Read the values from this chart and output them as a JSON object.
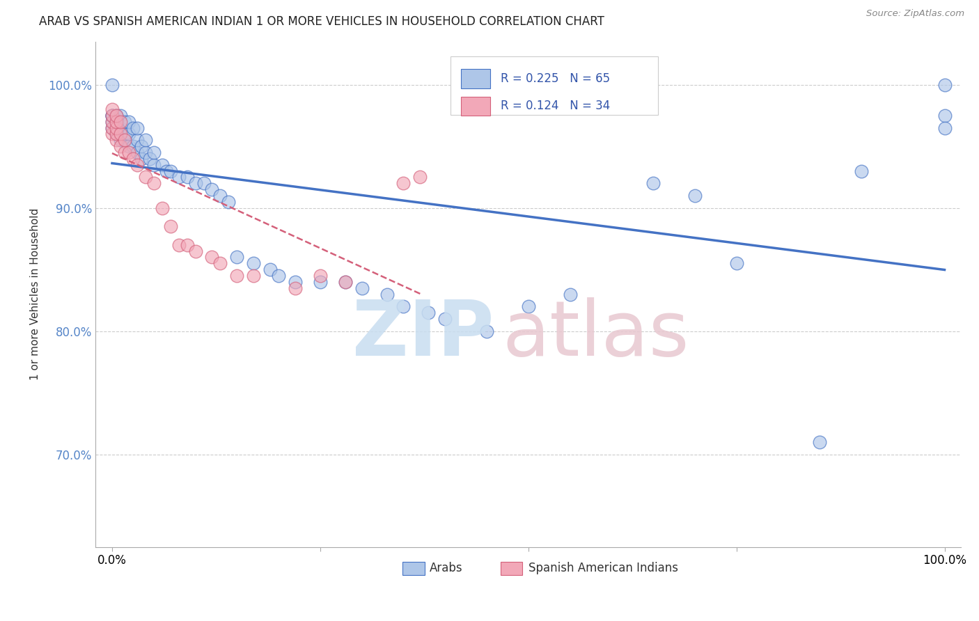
{
  "title": "ARAB VS SPANISH AMERICAN INDIAN 1 OR MORE VEHICLES IN HOUSEHOLD CORRELATION CHART",
  "source": "Source: ZipAtlas.com",
  "ylabel": "1 or more Vehicles in Household",
  "R_arab": 0.225,
  "N_arab": 65,
  "R_spanish": 0.124,
  "N_spanish": 34,
  "arab_color": "#aec6e8",
  "spanish_color": "#f2a8b8",
  "arab_line_color": "#4472c4",
  "spanish_line_color": "#d4607a",
  "watermark_zip_color": "#c8ddf0",
  "watermark_atlas_color": "#e8c8d0",
  "background_color": "#ffffff",
  "grid_color": "#cccccc",
  "ytick_color": "#5585c8",
  "xlim": [
    -0.02,
    1.02
  ],
  "ylim": [
    0.625,
    1.035
  ],
  "yticks": [
    0.7,
    0.8,
    0.9,
    1.0
  ],
  "ytick_labels": [
    "70.0%",
    "80.0%",
    "90.0%",
    "100.0%"
  ],
  "arab_x": [
    0.0,
    0.0,
    0.0,
    0.0,
    0.0,
    0.0,
    0.005,
    0.005,
    0.005,
    0.005,
    0.01,
    0.01,
    0.01,
    0.01,
    0.015,
    0.015,
    0.015,
    0.02,
    0.02,
    0.02,
    0.025,
    0.025,
    0.03,
    0.03,
    0.03,
    0.035,
    0.035,
    0.04,
    0.04,
    0.045,
    0.05,
    0.05,
    0.06,
    0.065,
    0.07,
    0.08,
    0.09,
    0.1,
    0.11,
    0.12,
    0.13,
    0.14,
    0.15,
    0.17,
    0.19,
    0.2,
    0.22,
    0.25,
    0.28,
    0.3,
    0.33,
    0.35,
    0.38,
    0.4,
    0.45,
    0.5,
    0.55,
    0.65,
    0.7,
    0.75,
    0.85,
    0.9,
    1.0,
    1.0,
    1.0
  ],
  "arab_y": [
    0.965,
    0.97,
    0.975,
    0.975,
    0.975,
    1.0,
    0.96,
    0.97,
    0.975,
    0.975,
    0.955,
    0.96,
    0.965,
    0.975,
    0.955,
    0.96,
    0.97,
    0.95,
    0.96,
    0.97,
    0.95,
    0.965,
    0.945,
    0.955,
    0.965,
    0.94,
    0.95,
    0.945,
    0.955,
    0.94,
    0.935,
    0.945,
    0.935,
    0.93,
    0.93,
    0.925,
    0.925,
    0.92,
    0.92,
    0.915,
    0.91,
    0.905,
    0.86,
    0.855,
    0.85,
    0.845,
    0.84,
    0.84,
    0.84,
    0.835,
    0.83,
    0.82,
    0.815,
    0.81,
    0.8,
    0.82,
    0.83,
    0.92,
    0.91,
    0.855,
    0.71,
    0.93,
    1.0,
    0.975,
    0.965
  ],
  "spanish_x": [
    0.0,
    0.0,
    0.0,
    0.0,
    0.0,
    0.005,
    0.005,
    0.005,
    0.005,
    0.005,
    0.01,
    0.01,
    0.01,
    0.015,
    0.015,
    0.02,
    0.025,
    0.03,
    0.04,
    0.05,
    0.06,
    0.07,
    0.08,
    0.09,
    0.1,
    0.12,
    0.13,
    0.15,
    0.17,
    0.22,
    0.25,
    0.28,
    0.35,
    0.37
  ],
  "spanish_y": [
    0.96,
    0.965,
    0.97,
    0.975,
    0.98,
    0.955,
    0.96,
    0.965,
    0.97,
    0.975,
    0.95,
    0.96,
    0.97,
    0.945,
    0.955,
    0.945,
    0.94,
    0.935,
    0.925,
    0.92,
    0.9,
    0.885,
    0.87,
    0.87,
    0.865,
    0.86,
    0.855,
    0.845,
    0.845,
    0.835,
    0.845,
    0.84,
    0.92,
    0.925
  ]
}
